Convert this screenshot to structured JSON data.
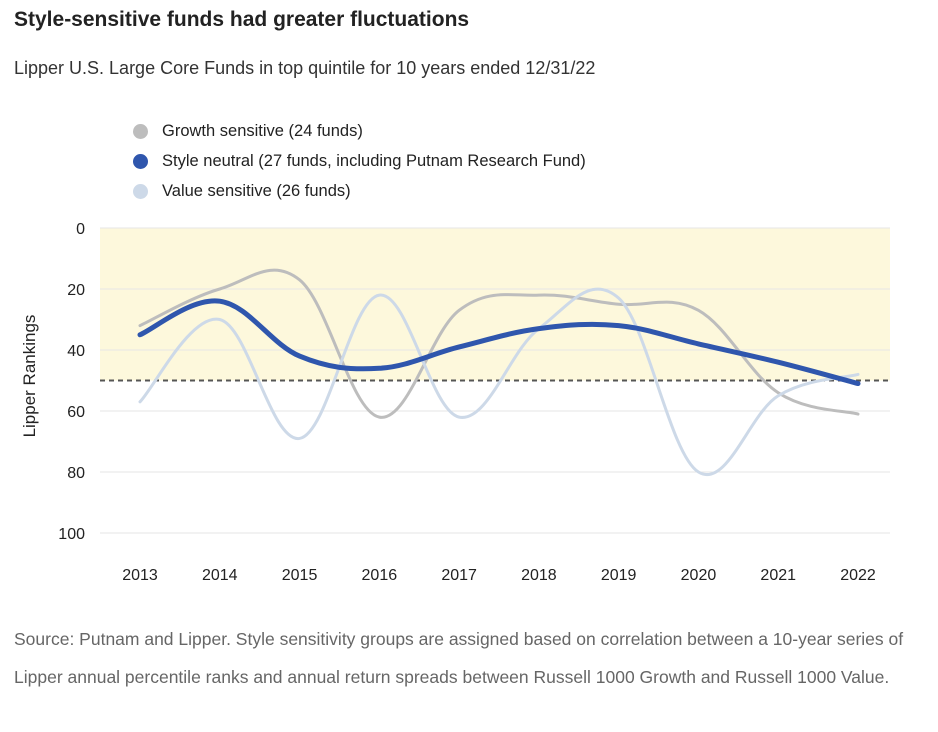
{
  "title": "Style-sensitive funds had greater fluctuations",
  "subtitle": "Lipper U.S. Large Core Funds in top quintile for 10 years ended 12/31/22",
  "source": "Source: Putnam and Lipper. Style sensitivity groups are assigned based on correlation between a 10-year series of Lipper annual percentile ranks and annual return spreads between Russell 1000 Growth and Russell 1000 Value.",
  "chart_data": {
    "type": "line",
    "title": "Style-sensitive funds had greater fluctuations",
    "subtitle": "Lipper U.S. Large Core Funds in top quintile for 10 years ended 12/31/22",
    "ylabel": "Lipper Rankings",
    "xlabel": "",
    "categories": [
      "2013",
      "2014",
      "2015",
      "2016",
      "2017",
      "2018",
      "2019",
      "2020",
      "2021",
      "2022"
    ],
    "ylim": [
      0,
      100
    ],
    "y_inverted": true,
    "yticks": [
      0,
      20,
      40,
      60,
      80,
      100
    ],
    "reference_line": 50,
    "highlight_band": [
      0,
      50
    ],
    "legend_position": "top-left",
    "series": [
      {
        "name": "Growth sensitive (24 funds)",
        "color": "#bdbdbd",
        "width": 3,
        "values": [
          32,
          20,
          17,
          62,
          27,
          22,
          25,
          27,
          54,
          61
        ]
      },
      {
        "name": "Value sensitive (26 funds)",
        "color": "#cdd9e8",
        "width": 3,
        "values": [
          57,
          30,
          69,
          22,
          62,
          33,
          23,
          80,
          55,
          48
        ]
      },
      {
        "name": "Style neutral (27 funds, including Putnam Research Fund)",
        "color": "#2f56ad",
        "width": 5,
        "values": [
          35,
          24,
          42,
          46,
          39,
          33,
          32,
          38,
          44,
          51
        ]
      }
    ],
    "legend": [
      {
        "label": "Growth sensitive (24 funds)",
        "color": "#bdbdbd"
      },
      {
        "label": "Style neutral (27 funds, including Putnam Research Fund)",
        "color": "#2f56ad"
      },
      {
        "label": "Value sensitive (26 funds)",
        "color": "#cdd9e8"
      }
    ],
    "band_color": "#fdf8dc",
    "grid": true
  }
}
